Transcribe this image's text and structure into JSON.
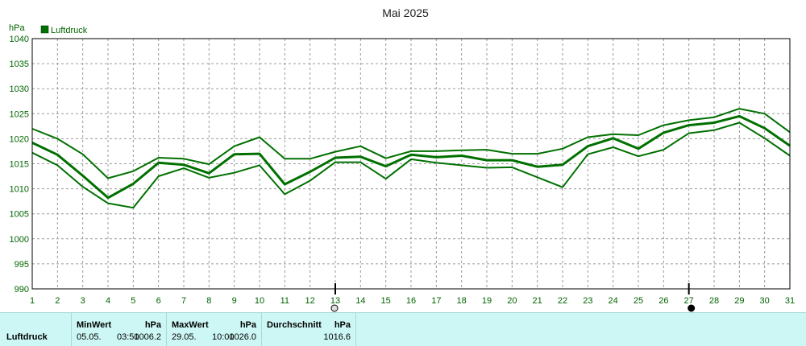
{
  "chart_data": {
    "type": "line",
    "title": "Mai 2025",
    "ylabel": "hPa",
    "legend": {
      "label": "Luftdruck",
      "color": "#007000",
      "placement": "top-left"
    },
    "ylim": [
      990,
      1040
    ],
    "yticks": [
      990,
      995,
      1000,
      1005,
      1010,
      1015,
      1020,
      1025,
      1030,
      1035,
      1040
    ],
    "x": [
      1,
      2,
      3,
      4,
      5,
      6,
      7,
      8,
      9,
      10,
      11,
      12,
      13,
      14,
      15,
      16,
      17,
      18,
      19,
      20,
      21,
      22,
      23,
      24,
      25,
      26,
      27,
      28,
      29,
      30,
      31
    ],
    "grid": true,
    "series": [
      {
        "role": "max",
        "values": [
          1022.0,
          1020.0,
          1016.9,
          1012.1,
          1013.5,
          1016.2,
          1016.0,
          1014.9,
          1018.5,
          1020.3,
          1016.0,
          1016.0,
          1017.4,
          1018.5,
          1016.1,
          1017.5,
          1017.5,
          1017.7,
          1017.8,
          1017.0,
          1017.0,
          1018.0,
          1020.3,
          1020.9,
          1020.7,
          1022.7,
          1023.7,
          1024.3,
          1026.0,
          1025.0,
          1021.3
        ],
        "stroke": 2
      },
      {
        "role": "mean",
        "values": [
          1019.2,
          1016.8,
          1012.6,
          1008.2,
          1011.0,
          1015.2,
          1014.8,
          1013.1,
          1016.9,
          1017.0,
          1010.9,
          1013.4,
          1016.2,
          1016.4,
          1014.5,
          1016.8,
          1016.3,
          1016.6,
          1015.7,
          1015.7,
          1014.4,
          1014.8,
          1018.5,
          1020.1,
          1018.0,
          1021.2,
          1022.7,
          1023.2,
          1024.5,
          1022.1,
          1018.6
        ],
        "stroke": 3
      },
      {
        "role": "min",
        "values": [
          1017.2,
          1014.7,
          1010.4,
          1007.1,
          1006.2,
          1012.5,
          1014.1,
          1012.2,
          1013.2,
          1014.7,
          1008.9,
          1011.6,
          1015.3,
          1015.3,
          1012.0,
          1015.9,
          1015.2,
          1014.7,
          1014.2,
          1014.3,
          1012.3,
          1010.3,
          1016.9,
          1018.3,
          1016.5,
          1017.8,
          1021.1,
          1021.7,
          1023.2,
          1020.1,
          1016.6
        ],
        "stroke": 2
      }
    ],
    "markers": [
      {
        "x": 13,
        "symbol": "open-circle"
      },
      {
        "x": 27,
        "symbol": "filled-circle"
      }
    ]
  },
  "summary": {
    "name": "Luftdruck",
    "min": {
      "header": "MinWert",
      "unit": "hPa",
      "date": "05.05.",
      "time": "03:50",
      "value": "1006.2"
    },
    "max": {
      "header": "MaxWert",
      "unit": "hPa",
      "date": "29.05.",
      "time": "10:00",
      "value": "1026.0"
    },
    "avg": {
      "header": "Durchschnitt",
      "unit": "hPa",
      "value": "1016.6"
    }
  }
}
